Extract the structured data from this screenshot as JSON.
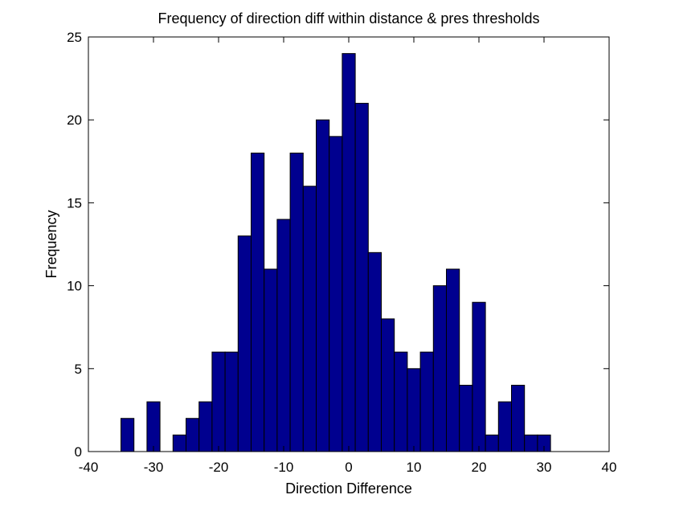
{
  "chart_data": {
    "type": "bar",
    "title": "Frequency of direction diff within distance & pres thresholds",
    "xlabel": "Direction Difference",
    "ylabel": "Frequency",
    "xlim": [
      -40,
      40
    ],
    "ylim": [
      0,
      25
    ],
    "xticks": [
      -40,
      -30,
      -20,
      -10,
      0,
      10,
      20,
      30,
      40
    ],
    "yticks": [
      0,
      5,
      10,
      15,
      20,
      25
    ],
    "bin_width": 2,
    "bin_centers": [
      -34,
      -32,
      -30,
      -28,
      -26,
      -24,
      -22,
      -20,
      -18,
      -16,
      -14,
      -12,
      -10,
      -8,
      -6,
      -4,
      -2,
      0,
      2,
      4,
      6,
      8,
      10,
      12,
      14,
      16,
      18,
      20,
      22,
      24,
      26,
      28,
      30
    ],
    "values": [
      2,
      0,
      3,
      0,
      1,
      2,
      3,
      6,
      6,
      13,
      18,
      11,
      14,
      18,
      16,
      20,
      19,
      24,
      21,
      12,
      8,
      6,
      5,
      6,
      10,
      11,
      4,
      9,
      1,
      3,
      4,
      1,
      1
    ],
    "bar_color": "#00008f",
    "grid": false,
    "legend": false
  }
}
